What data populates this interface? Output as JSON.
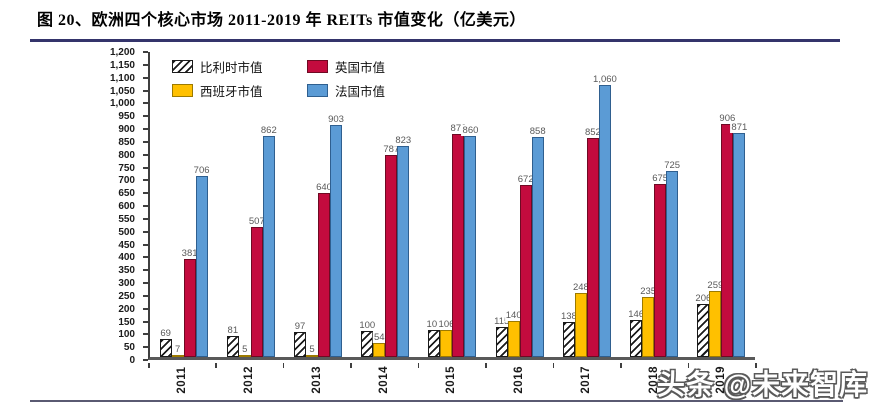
{
  "figure": {
    "title": "图 20、欧洲四个核心市场 2011-2019 年 REITs 市值变化（亿美元）",
    "watermark": "头条 @未来智库"
  },
  "colors": {
    "title_rule": "#34346b",
    "bottom_rule": "#5a5a72",
    "axis": "#595959",
    "data_label": "#595959",
    "belgium_hatch": "#1a1a1a",
    "spain": "#FFC000",
    "uk": "#C30B3E",
    "france": "#5B9BD5"
  },
  "chart_data": {
    "type": "bar",
    "title": "图 20、欧洲四个核心市场 2011-2019 年 REITs 市值变化（亿美元）",
    "xlabel": "",
    "ylabel": "",
    "ylim": [
      0,
      1200
    ],
    "ytick_step": 50,
    "grid": false,
    "legend_position": "top-left-inside",
    "categories": [
      "2011",
      "2012",
      "2013",
      "2014",
      "2015",
      "2016",
      "2017",
      "2018",
      "2019"
    ],
    "series": [
      {
        "name": "比利时市值",
        "pattern": "diagonal-hatch",
        "color": "#1a1a1a",
        "border": "#1a1a1a",
        "values": [
          69,
          81,
          97,
          100,
          106,
          115,
          138,
          146,
          206
        ]
      },
      {
        "name": "西班牙市值",
        "pattern": "solid",
        "color": "#FFC000",
        "border": "#9c7a00",
        "values": [
          7,
          5,
          5,
          54,
          106,
          140,
          248,
          235,
          259
        ]
      },
      {
        "name": "英国市值",
        "pattern": "solid",
        "color": "#C30B3E",
        "border": "#6e0a23",
        "values": [
          381,
          507,
          640,
          787,
          870,
          672,
          852,
          675,
          906
        ]
      },
      {
        "name": "法国市值",
        "pattern": "solid",
        "color": "#5B9BD5",
        "border": "#2f5f8f",
        "values": [
          706,
          862,
          903,
          823,
          860,
          858,
          1060,
          725,
          871
        ]
      }
    ],
    "legend_display_order": [
      0,
      2,
      1,
      3
    ]
  }
}
